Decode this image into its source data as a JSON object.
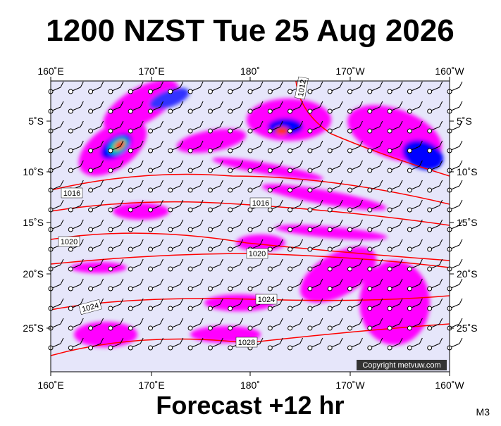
{
  "header": {
    "title": "1200 NZST Tue 25 Aug 2026"
  },
  "map": {
    "lon_labels": [
      "160˚E",
      "170˚E",
      "180˚",
      "170˚W",
      "160˚W"
    ],
    "lat_labels": [
      "5˚S",
      "10˚S",
      "15˚S",
      "20˚S",
      "25˚S"
    ],
    "isobar_labels": [
      "1012",
      "1016",
      "1016",
      "1020",
      "1020",
      "1024",
      "1024",
      "1028"
    ],
    "copyright": "Copyright metvuw.com"
  },
  "footer": {
    "forecast": "Forecast +12 hr",
    "code": "M3"
  }
}
